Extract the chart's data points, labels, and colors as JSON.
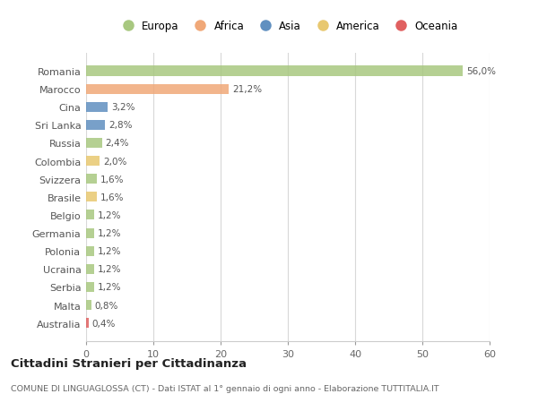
{
  "countries": [
    "Romania",
    "Marocco",
    "Cina",
    "Sri Lanka",
    "Russia",
    "Colombia",
    "Svizzera",
    "Brasile",
    "Belgio",
    "Germania",
    "Polonia",
    "Ucraina",
    "Serbia",
    "Malta",
    "Australia"
  ],
  "values": [
    56.0,
    21.2,
    3.2,
    2.8,
    2.4,
    2.0,
    1.6,
    1.6,
    1.2,
    1.2,
    1.2,
    1.2,
    1.2,
    0.8,
    0.4
  ],
  "labels": [
    "56,0%",
    "21,2%",
    "3,2%",
    "2,8%",
    "2,4%",
    "2,0%",
    "1,6%",
    "1,6%",
    "1,2%",
    "1,2%",
    "1,2%",
    "1,2%",
    "1,2%",
    "0,8%",
    "0,4%"
  ],
  "continents": [
    "Europa",
    "Africa",
    "Asia",
    "Asia",
    "Europa",
    "America",
    "Europa",
    "America",
    "Europa",
    "Europa",
    "Europa",
    "Europa",
    "Europa",
    "Europa",
    "Oceania"
  ],
  "continent_colors": {
    "Europa": "#a8c880",
    "Africa": "#f0a878",
    "Asia": "#6090c0",
    "America": "#e8c870",
    "Oceania": "#e06060"
  },
  "legend_order": [
    "Europa",
    "Africa",
    "Asia",
    "America",
    "Oceania"
  ],
  "title": "Cittadini Stranieri per Cittadinanza",
  "subtitle": "COMUNE DI LINGUAGLOSSA (CT) - Dati ISTAT al 1° gennaio di ogni anno - Elaborazione TUTTITALIA.IT",
  "xlim": [
    0,
    60
  ],
  "xticks": [
    0,
    10,
    20,
    30,
    40,
    50,
    60
  ],
  "bg_color": "#ffffff",
  "grid_color": "#d8d8d8",
  "bar_height": 0.55
}
